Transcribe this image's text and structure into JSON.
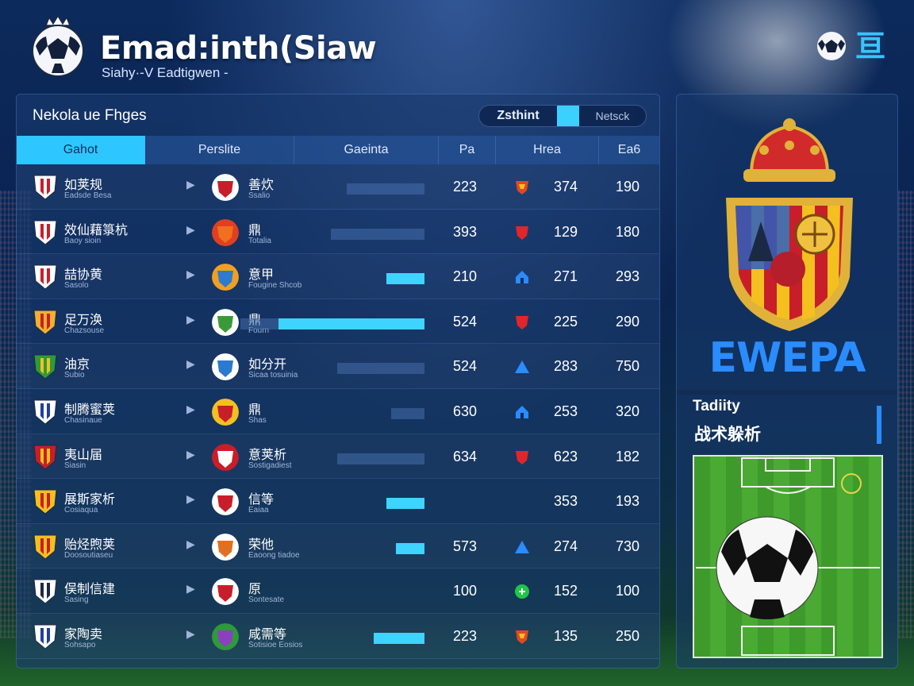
{
  "header": {
    "title": "Emad:inth(Siaw",
    "subtitle": "Siahy·-V Eadtigwen -",
    "lang_icon": "亘"
  },
  "panel": {
    "title": "Nekola ue Fhges",
    "toggle": {
      "option_a": "Zsthint",
      "option_b": "Netsck"
    },
    "columns": [
      "Gahot",
      "Perslite",
      "Gaeinta",
      "Pa",
      "Hrea",
      "Ea6"
    ]
  },
  "rows": [
    {
      "home": "如荚规",
      "home_sub": "Eadsde Besa",
      "away": "善炊",
      "away_sub": "Ssalio",
      "track": 98,
      "fill": 0,
      "v1": "223",
      "ind": "shield-orange",
      "v2": "374",
      "v3": "190"
    },
    {
      "home": "效仙藉箓杭",
      "home_sub": "Baoy sioin",
      "away": "鼎",
      "away_sub": "Totalia",
      "track": 118,
      "fill": 0,
      "v1": "393",
      "ind": "shield-red",
      "v2": "129",
      "v3": "180"
    },
    {
      "home": "喆协黄",
      "home_sub": "Sasolo",
      "away": "意甲",
      "away_sub": "Fougine Shcob",
      "track": 0,
      "fill": 48,
      "v1": "210",
      "ind": "home-blue",
      "v2": "271",
      "v3": "293"
    },
    {
      "home": "足万涣",
      "home_sub": "Chazsouse",
      "away": "鼎",
      "away_sub": "Fourn",
      "track": 232,
      "fill": 184,
      "v1": "524",
      "ind": "shield-red",
      "v2": "225",
      "v3": "290"
    },
    {
      "home": "油京",
      "home_sub": "Subio",
      "away": "如分开",
      "away_sub": "Sicaa tosuinia",
      "track": 110,
      "fill": 0,
      "v1": "524",
      "ind": "tri-blue",
      "v2": "283",
      "v3": "750"
    },
    {
      "home": "制腾蜜荚",
      "home_sub": "Chasinaue",
      "away": "鼎",
      "away_sub": "Shas",
      "track": 42,
      "fill": 0,
      "v1": "630",
      "ind": "home-blue",
      "v2": "253",
      "v3": "320"
    },
    {
      "home": "夷山届",
      "home_sub": "Siasin",
      "away": "意荚析",
      "away_sub": "Sostigadiest",
      "track": 110,
      "fill": 0,
      "v1": "634",
      "ind": "shield-red",
      "v2": "623",
      "v3": "182"
    },
    {
      "home": "展斯家析",
      "home_sub": "Cosiaqua",
      "away": "信等",
      "away_sub": "Eaiaa",
      "track": 0,
      "fill": 48,
      "v1": "",
      "ind": "none",
      "v2": "353",
      "v3": "193"
    },
    {
      "home": "贻烃煦荚",
      "home_sub": "Doosoutiaseu",
      "away": "荣他",
      "away_sub": "Eaoong tiadoe",
      "track": 36,
      "fill": 36,
      "v1": "573",
      "ind": "tri-blue",
      "v2": "274",
      "v3": "730"
    },
    {
      "home": "俣制信建",
      "home_sub": "Sasing",
      "away": "原",
      "away_sub": "Sontesate",
      "track": 0,
      "fill": 0,
      "v1": "100",
      "ind": "circle-green",
      "v2": "152",
      "v3": "100"
    },
    {
      "home": "家陶卖",
      "home_sub": "Sohsapo",
      "away": "咸需等",
      "away_sub": "Sotisioe Eosios",
      "track": 64,
      "fill": 64,
      "v1": "223",
      "ind": "shield-orange",
      "v2": "135",
      "v3": "250"
    }
  ],
  "side": {
    "brand": "EWEPA",
    "tactics_en": "Tadiity",
    "tactics_zh": "战术躲析"
  },
  "colors": {
    "accent": "#3fd3ff",
    "brand": "#2a8cff",
    "panel": "#183a6e"
  }
}
